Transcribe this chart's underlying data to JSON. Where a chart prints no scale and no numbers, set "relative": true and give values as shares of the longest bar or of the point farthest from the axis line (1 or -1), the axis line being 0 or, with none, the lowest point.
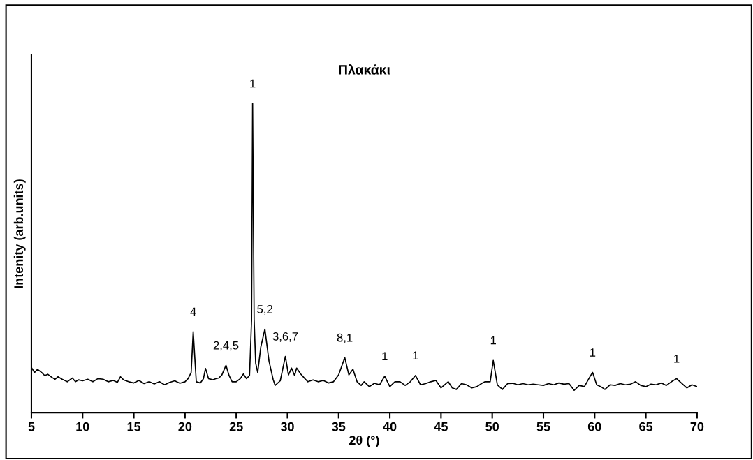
{
  "chart_data": {
    "type": "line",
    "title": "Πλακάκι",
    "xlabel": "2θ (°)",
    "ylabel": "Intenity (arb.units)",
    "relative": true,
    "xlim": [
      5,
      70
    ],
    "xticks": [
      5,
      10,
      15,
      20,
      25,
      30,
      35,
      40,
      45,
      50,
      55,
      60,
      65,
      70
    ],
    "tick_labels": "x",
    "grid": false,
    "marker": "none",
    "line_style": "solid",
    "series": [
      {
        "color": "#000000",
        "x": [
          5,
          5.3,
          5.6,
          6,
          6.3,
          6.6,
          7,
          7.3,
          7.6,
          8,
          8.5,
          9,
          9.3,
          9.6,
          10,
          10.5,
          11,
          11.5,
          12,
          12.5,
          13,
          13.4,
          13.7,
          14,
          14.5,
          15,
          15.5,
          16,
          16.5,
          17,
          17.5,
          18,
          18.5,
          19,
          19.5,
          20,
          20.3,
          20.6,
          20.8,
          21.1,
          21.5,
          21.8,
          22,
          22.3,
          22.7,
          23,
          23.3,
          23.6,
          24,
          24.3,
          24.6,
          25,
          25.4,
          25.7,
          26,
          26.3,
          26.5,
          26.6,
          26.75,
          26.9,
          27.1,
          27.4,
          27.8,
          28.2,
          28.6,
          28.8,
          29.3,
          29.8,
          30.1,
          30.4,
          30.7,
          30.9,
          31.3,
          31.7,
          32,
          32.5,
          33,
          33.5,
          34,
          34.5,
          35,
          35.6,
          36,
          36.4,
          36.8,
          37.2,
          37.5,
          38,
          38.5,
          39,
          39.5,
          40,
          40.5,
          41,
          41.5,
          42,
          42.5,
          43,
          43.5,
          44,
          44.5,
          45,
          45.7,
          46.1,
          46.5,
          47,
          47.5,
          48,
          48.5,
          49,
          49.3,
          49.8,
          50.1,
          50.5,
          51,
          51.5,
          52,
          52.5,
          53,
          53.5,
          54,
          54.5,
          55,
          55.5,
          56,
          56.5,
          57,
          57.5,
          58,
          58.5,
          59,
          59.5,
          59.8,
          60.2,
          60.6,
          61,
          61.5,
          62,
          62.5,
          63,
          63.5,
          64,
          64.5,
          65,
          65.5,
          66,
          66.5,
          67,
          67.5,
          68,
          68.5,
          69,
          69.5,
          70
        ],
        "values": [
          0.146,
          0.13,
          0.14,
          0.13,
          0.12,
          0.124,
          0.114,
          0.108,
          0.116,
          0.108,
          0.1,
          0.112,
          0.1,
          0.106,
          0.103,
          0.108,
          0.1,
          0.11,
          0.108,
          0.1,
          0.104,
          0.098,
          0.116,
          0.106,
          0.1,
          0.096,
          0.104,
          0.094,
          0.1,
          0.093,
          0.1,
          0.09,
          0.098,
          0.103,
          0.095,
          0.1,
          0.11,
          0.13,
          0.262,
          0.1,
          0.096,
          0.11,
          0.143,
          0.11,
          0.106,
          0.11,
          0.112,
          0.122,
          0.153,
          0.12,
          0.1,
          0.1,
          0.11,
          0.125,
          0.11,
          0.12,
          0.3,
          1.0,
          0.3,
          0.16,
          0.13,
          0.212,
          0.27,
          0.167,
          0.108,
          0.088,
          0.103,
          0.182,
          0.122,
          0.144,
          0.12,
          0.144,
          0.125,
          0.11,
          0.1,
          0.106,
          0.1,
          0.104,
          0.096,
          0.1,
          0.122,
          0.178,
          0.122,
          0.14,
          0.1,
          0.088,
          0.1,
          0.084,
          0.095,
          0.09,
          0.118,
          0.084,
          0.1,
          0.1,
          0.088,
          0.1,
          0.12,
          0.09,
          0.094,
          0.1,
          0.104,
          0.08,
          0.1,
          0.08,
          0.075,
          0.094,
          0.09,
          0.08,
          0.084,
          0.095,
          0.1,
          0.1,
          0.169,
          0.09,
          0.075,
          0.094,
          0.095,
          0.09,
          0.094,
          0.09,
          0.092,
          0.09,
          0.088,
          0.094,
          0.09,
          0.096,
          0.092,
          0.094,
          0.072,
          0.088,
          0.084,
          0.114,
          0.13,
          0.09,
          0.084,
          0.075,
          0.09,
          0.088,
          0.094,
          0.09,
          0.092,
          0.1,
          0.088,
          0.084,
          0.092,
          0.09,
          0.096,
          0.088,
          0.1,
          0.11,
          0.095,
          0.08,
          0.09,
          0.084
        ]
      }
    ],
    "annotations": [
      {
        "text": "4",
        "x": 20.8,
        "y": 0.262
      },
      {
        "text": "2,4,5",
        "x": 24,
        "y": 0.153
      },
      {
        "text": "1",
        "x": 26.6,
        "y": 1.0
      },
      {
        "text": "5,2",
        "x": 27.8,
        "y": 0.27
      },
      {
        "text": "3,6,7",
        "x": 29.8,
        "y": 0.182
      },
      {
        "text": "8,1",
        "x": 35.6,
        "y": 0.178
      },
      {
        "text": "1",
        "x": 39.5,
        "y": 0.118
      },
      {
        "text": "1",
        "x": 42.5,
        "y": 0.12
      },
      {
        "text": "1",
        "x": 50.1,
        "y": 0.169
      },
      {
        "text": "1",
        "x": 59.8,
        "y": 0.13
      },
      {
        "text": "1",
        "x": 68,
        "y": 0.11
      }
    ]
  }
}
